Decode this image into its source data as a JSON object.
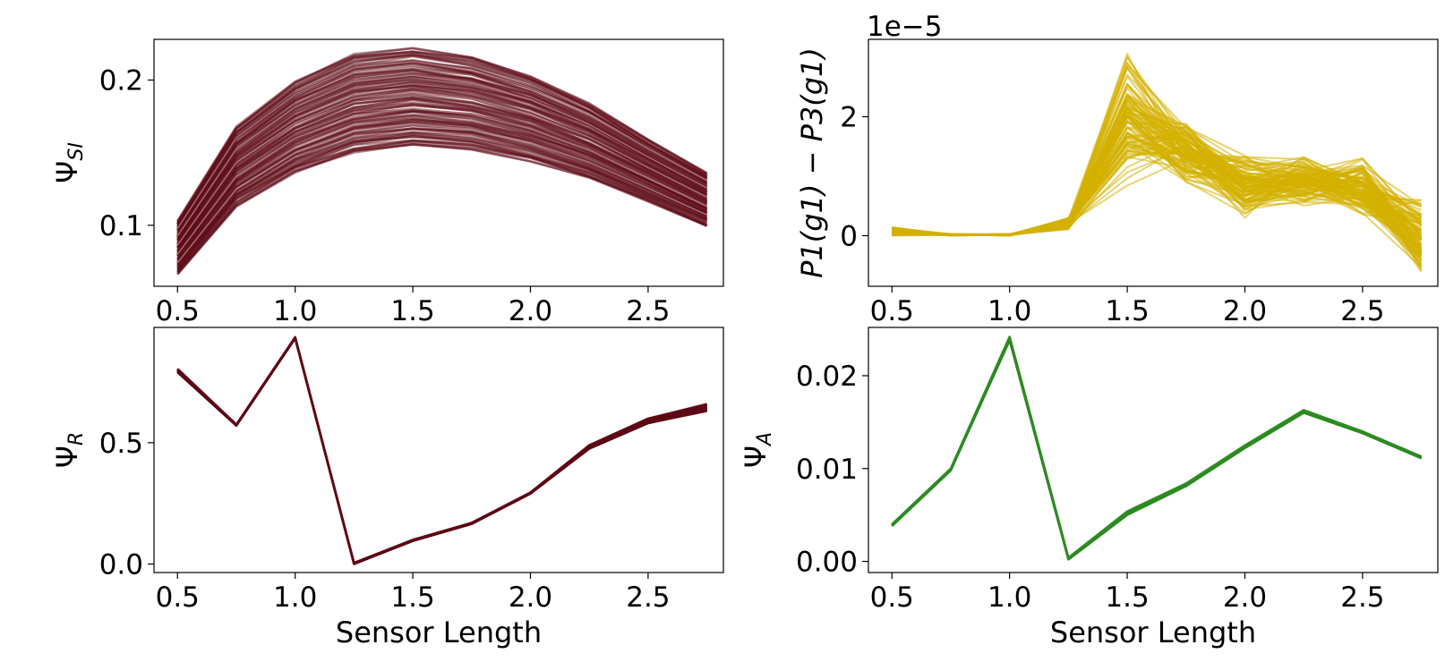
{
  "chart_data": [
    {
      "id": "si",
      "type": "line",
      "ylabel_base": "Ψ",
      "ylabel_sub": "SI",
      "xlabel": "",
      "x": [
        0.5,
        0.75,
        1.0,
        1.25,
        1.5,
        1.75,
        2.0,
        2.25,
        2.5,
        2.75
      ],
      "xlim": [
        0.4,
        2.82
      ],
      "ylim": [
        0.058,
        0.228
      ],
      "xticks": [
        "0.5",
        "1.0",
        "1.5",
        "2.0",
        "2.5"
      ],
      "xtick_values": [
        0.5,
        1.0,
        1.5,
        2.0,
        2.5
      ],
      "yticks": [
        "0.1",
        "0.2"
      ],
      "ytick_values": [
        0.1,
        0.2
      ],
      "offset_text": "",
      "color": "#5e0a17",
      "series_count": 100,
      "series_style": "dense_band",
      "series_low": [
        0.066,
        0.113,
        0.136,
        0.15,
        0.155,
        0.152,
        0.144,
        0.132,
        0.116,
        0.099
      ],
      "series_high": [
        0.103,
        0.168,
        0.199,
        0.218,
        0.222,
        0.216,
        0.203,
        0.184,
        0.159,
        0.136
      ]
    },
    {
      "id": "p1p3",
      "type": "line",
      "ylabel_base": "P1(g1) − P3(g1)",
      "ylabel_sub": "",
      "xlabel": "",
      "x": [
        0.5,
        0.75,
        1.0,
        1.25,
        1.5,
        1.75,
        2.0,
        2.25,
        2.5,
        2.75
      ],
      "xlim": [
        0.4,
        2.82
      ],
      "ylim": [
        -0.85,
        3.3
      ],
      "xticks": [
        "0.5",
        "1.0",
        "1.5",
        "2.0",
        "2.5"
      ],
      "xtick_values": [
        0.5,
        1.0,
        1.5,
        2.0,
        2.5
      ],
      "yticks": [
        "0",
        "2"
      ],
      "ytick_values": [
        0,
        2
      ],
      "offset_text": "1e−5",
      "color": "#d4b000",
      "series_count": 100,
      "series_style": "noisy",
      "series_low": [
        0.0,
        0.0,
        0.0,
        0.1,
        0.8,
        0.9,
        0.3,
        0.5,
        0.3,
        -0.7
      ],
      "series_high": [
        0.15,
        0.03,
        0.03,
        0.3,
        3.1,
        1.9,
        1.4,
        1.4,
        1.3,
        0.6
      ]
    },
    {
      "id": "r",
      "type": "line",
      "ylabel_base": "Ψ",
      "ylabel_sub": "R",
      "xlabel": "Sensor Length",
      "x": [
        0.5,
        0.75,
        1.0,
        1.25,
        1.5,
        1.75,
        2.0,
        2.25,
        2.5,
        2.75
      ],
      "xlim": [
        0.4,
        2.82
      ],
      "ylim": [
        -0.035,
        0.975
      ],
      "xticks": [
        "0.5",
        "1.0",
        "1.5",
        "2.0",
        "2.5"
      ],
      "xtick_values": [
        0.5,
        1.0,
        1.5,
        2.0,
        2.5
      ],
      "yticks": [
        "0.0",
        "0.5"
      ],
      "ytick_values": [
        0.0,
        0.5
      ],
      "offset_text": "",
      "color": "#5e0a17",
      "series_count": 30,
      "series_style": "dense_band",
      "series_low": [
        0.79,
        0.57,
        0.93,
        0.0,
        0.095,
        0.165,
        0.29,
        0.475,
        0.58,
        0.63
      ],
      "series_high": [
        0.805,
        0.575,
        0.935,
        0.005,
        0.1,
        0.17,
        0.295,
        0.49,
        0.6,
        0.66
      ]
    },
    {
      "id": "a",
      "type": "line",
      "ylabel_base": "Ψ",
      "ylabel_sub": "A",
      "xlabel": "Sensor Length",
      "x": [
        0.5,
        0.75,
        1.0,
        1.25,
        1.5,
        1.75,
        2.0,
        2.25,
        2.5,
        2.75
      ],
      "xlim": [
        0.4,
        2.82
      ],
      "ylim": [
        -0.0012,
        0.0252
      ],
      "xticks": [
        "0.5",
        "1.0",
        "1.5",
        "2.0",
        "2.5"
      ],
      "xtick_values": [
        0.5,
        1.0,
        1.5,
        2.0,
        2.5
      ],
      "yticks": [
        "0.00",
        "0.01",
        "0.02"
      ],
      "ytick_values": [
        0.0,
        0.01,
        0.02
      ],
      "offset_text": "",
      "color": "#2e8b22",
      "series_count": 30,
      "series_style": "dense_band",
      "series_low": [
        0.0038,
        0.0098,
        0.0238,
        0.0002,
        0.005,
        0.0081,
        0.0122,
        0.016,
        0.0138,
        0.0111
      ],
      "series_high": [
        0.004,
        0.01,
        0.0242,
        0.0004,
        0.0054,
        0.0084,
        0.0125,
        0.0163,
        0.014,
        0.0113
      ]
    }
  ]
}
